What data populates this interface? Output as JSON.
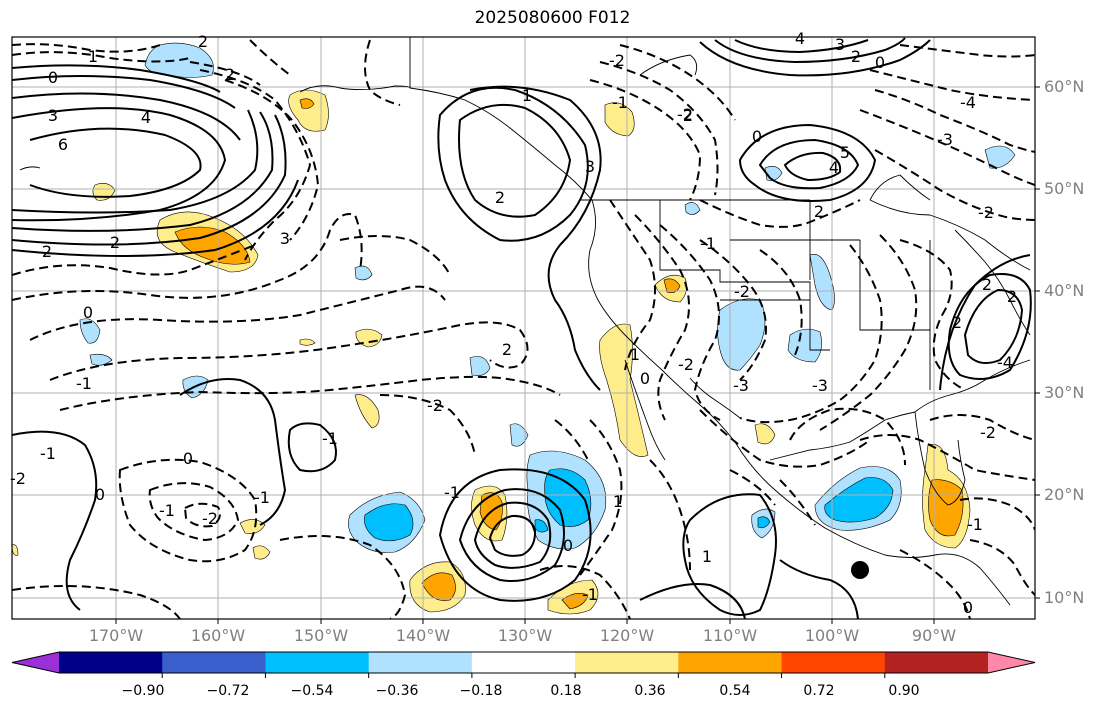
{
  "title": "2025080600 F012",
  "lat_labels": [
    "60°N",
    "50°N",
    "40°N",
    "30°N",
    "20°N",
    "10°N"
  ],
  "lon_labels": [
    "170°W",
    "160°W",
    "150°W",
    "140°W",
    "130°W",
    "120°W",
    "110°W",
    "100°W",
    "90°W"
  ],
  "colorbar": {
    "tick_labels": [
      "−0.90",
      "−0.72",
      "−0.54",
      "−0.36",
      "−0.18",
      "0.18",
      "0.36",
      "0.54",
      "0.72",
      "0.90"
    ],
    "colors": [
      "#9b30d9",
      "#00008b",
      "#3a5fcd",
      "#00bfff",
      "#b0e2ff",
      "#ffffff",
      "#ffec8b",
      "#ffa500",
      "#ff4500",
      "#b22222",
      "#ff88aa"
    ]
  },
  "contour_labels": [
    "1",
    "0",
    "3",
    "4",
    "6",
    "2",
    "2",
    "2",
    "3",
    "0",
    "-1",
    "-2",
    "2",
    "0",
    "-1",
    "-2",
    "-1",
    "0",
    "-2",
    "-1",
    "-1",
    "2",
    "4",
    "5",
    "3",
    "2",
    "2",
    "-3",
    "-2",
    "0",
    "1",
    "-1",
    "0",
    "-1",
    "-2",
    "-3",
    "-4",
    "-2",
    "0",
    "2",
    "1",
    "0",
    "-1",
    "4",
    "3",
    "2",
    "2",
    "-2",
    "-2",
    "-3",
    "-4",
    "2",
    "-1",
    "0",
    "-2",
    "1",
    "-1",
    "1",
    "2"
  ]
}
